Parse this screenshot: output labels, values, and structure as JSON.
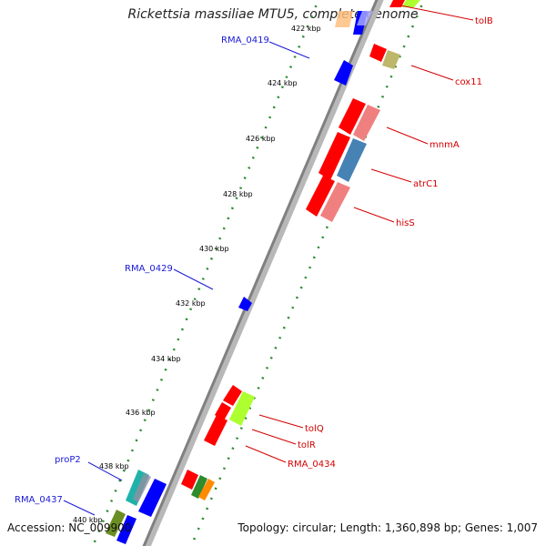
{
  "title": "Rickettsia massiliae MTU5, complete genome",
  "accession": "Accession: NC_009900",
  "summary": "Topology: circular; Length: 1,360,898 bp; Genes: 1,007",
  "ticks": [
    "422 kbp",
    "424 kbp",
    "426 kbp",
    "428 kbp",
    "430 kbp",
    "432 kbp",
    "434 kbp",
    "436 kbp",
    "438 kbp",
    "440 kbp"
  ],
  "gene_labels": [
    {
      "text": "tolB",
      "color": "#d40000"
    },
    {
      "text": "cox11",
      "color": "#d40000"
    },
    {
      "text": "mnmA",
      "color": "#d40000"
    },
    {
      "text": "atrC1",
      "color": "#d40000"
    },
    {
      "text": "hisS",
      "color": "#d40000"
    },
    {
      "text": "tolQ",
      "color": "#d40000"
    },
    {
      "text": "tolR",
      "color": "#d40000"
    },
    {
      "text": "RMA_0434",
      "color": "#d40000"
    },
    {
      "text": "RMA_0419",
      "color": "#1a1ad6"
    },
    {
      "text": "RMA_0429",
      "color": "#1a1ad6"
    },
    {
      "text": "proP2",
      "color": "#1a1ad6"
    },
    {
      "text": "RMA_0437",
      "color": "#1a1ad6"
    }
  ],
  "colors": {
    "backbone": "#808080",
    "tick": "#2a8a2a",
    "red": "#ff0000",
    "pink": "#f08080",
    "blue": "#0000ff",
    "steel": "#4682b4",
    "khaki": "#bdb76b",
    "lime": "#adff2f"
  }
}
